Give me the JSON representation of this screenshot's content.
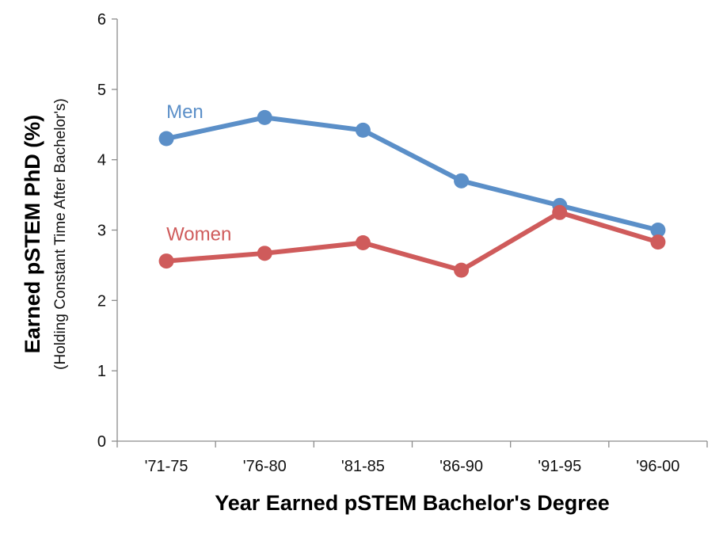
{
  "chart_data": {
    "type": "line",
    "categories": [
      "'71-75",
      "'76-80",
      "'81-85",
      "'86-90",
      "'91-95",
      "'96-00"
    ],
    "series": [
      {
        "name": "Men",
        "values": [
          4.3,
          4.6,
          4.42,
          3.7,
          3.35,
          3.0
        ],
        "color": "#5b8fc8"
      },
      {
        "name": "Women",
        "values": [
          2.56,
          2.67,
          2.82,
          2.43,
          3.25,
          2.83
        ],
        "color": "#cf5b5b"
      }
    ],
    "title": "",
    "xlabel": "Year Earned pSTEM Bachelor's Degree",
    "ylabel": "Earned pSTEM PhD (%)",
    "ylabel_sub": "(Holding Constant Time After Bachelor's)",
    "ylim": [
      0,
      6
    ],
    "yticks": [
      "0",
      "1",
      "2",
      "3",
      "4",
      "5",
      "6"
    ],
    "grid": false,
    "legend": "inline labels next to lines"
  }
}
